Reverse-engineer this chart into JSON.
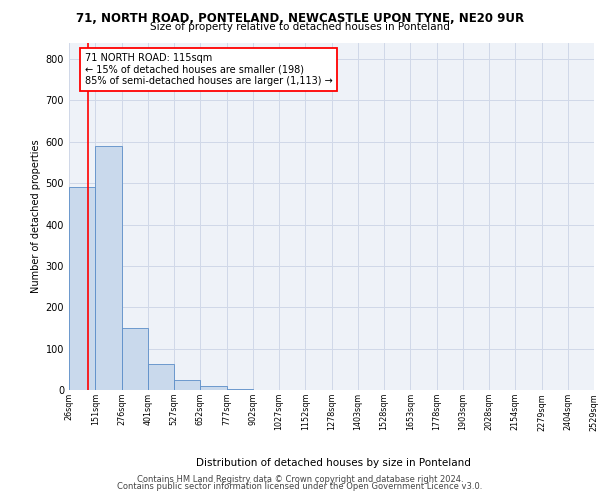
{
  "title1": "71, NORTH ROAD, PONTELAND, NEWCASTLE UPON TYNE, NE20 9UR",
  "title2": "Size of property relative to detached houses in Ponteland",
  "xlabel": "Distribution of detached houses by size in Ponteland",
  "ylabel": "Number of detached properties",
  "bar_values": [
    490,
    590,
    150,
    63,
    25,
    10,
    2,
    0,
    0,
    0,
    0,
    0,
    0,
    0,
    0,
    0,
    0,
    0,
    0,
    0
  ],
  "bar_color": "#c9d9ec",
  "bar_edge_color": "#5b8dc8",
  "xticklabels": [
    "26sqm",
    "151sqm",
    "276sqm",
    "401sqm",
    "527sqm",
    "652sqm",
    "777sqm",
    "902sqm",
    "1027sqm",
    "1152sqm",
    "1278sqm",
    "1403sqm",
    "1528sqm",
    "1653sqm",
    "1778sqm",
    "1903sqm",
    "2028sqm",
    "2154sqm",
    "2279sqm",
    "2404sqm",
    "2529sqm"
  ],
  "ylim": [
    0,
    840
  ],
  "yticks": [
    0,
    100,
    200,
    300,
    400,
    500,
    600,
    700,
    800
  ],
  "annotation_text": "71 NORTH ROAD: 115sqm\n← 15% of detached houses are smaller (198)\n85% of semi-detached houses are larger (1,113) →",
  "footer1": "Contains HM Land Registry data © Crown copyright and database right 2024.",
  "footer2": "Contains public sector information licensed under the Open Government Licence v3.0.",
  "grid_color": "#d0d8e8",
  "background_color": "#eef2f8"
}
